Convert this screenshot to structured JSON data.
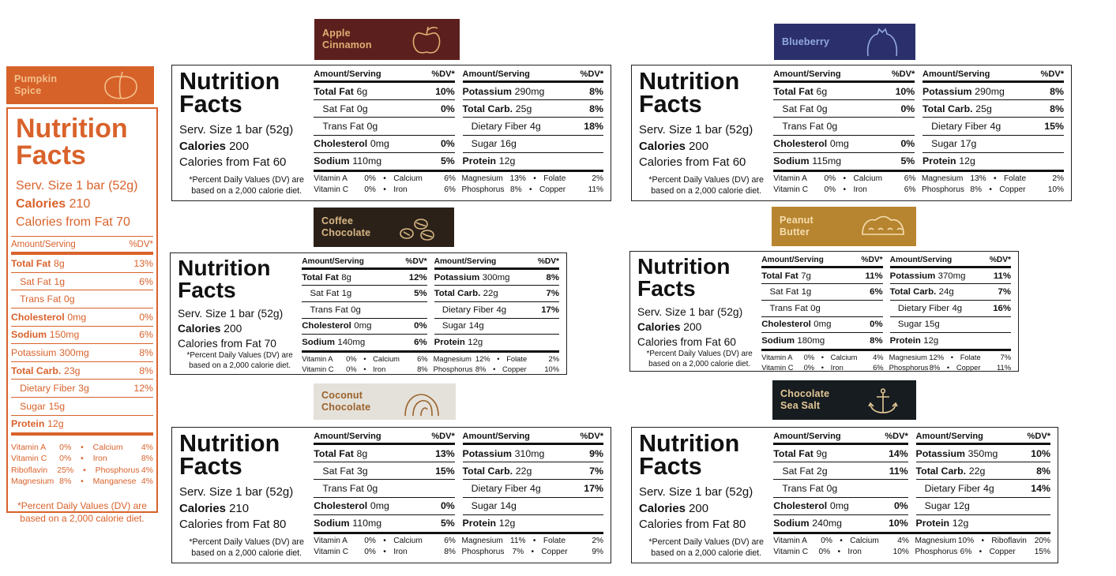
{
  "labels": [
    {
      "flavor": "Pumpkin Spice",
      "title": "Nutrition Facts",
      "serving": "Serv. Size 1 bar (52g)",
      "calories": {
        "name": "Calories",
        "amount": "210"
      },
      "calories_from_fat": "Calories from Fat 70",
      "header": [
        "Amount/Serving",
        "%DV*"
      ],
      "rows": [
        {
          "name": "Total Fat",
          "amount": "8g",
          "dv": "13%",
          "bold": true
        },
        {
          "name": "Sat Fat",
          "amount": "1g",
          "dv": "6%",
          "indent": true
        },
        {
          "name": "Trans Fat",
          "amount": "0g",
          "indent": true
        },
        {
          "name": "Cholesterol",
          "amount": "0mg",
          "dv": "0%",
          "bold": true
        },
        {
          "name": "Sodium",
          "amount": "150mg",
          "dv": "6%",
          "bold": true
        },
        {
          "name": "Potassium",
          "amount": "300mg",
          "dv": "8%"
        },
        {
          "name": "Total Carb.",
          "amount": "23g",
          "dv": "8%",
          "bold": true
        },
        {
          "name": "Dietary Fiber",
          "amount": "3g",
          "dv": "12%",
          "indent": true
        },
        {
          "name": "Sugar",
          "amount": "15g",
          "indent": true
        },
        {
          "name": "Protein",
          "amount": "12g",
          "bold": true
        }
      ],
      "vitamins": [
        [
          {
            "name": "Vitamin A",
            "dv": "0%"
          },
          {
            "name": "Calcium",
            "dv": "4%"
          }
        ],
        [
          {
            "name": "Vitamin C",
            "dv": "0%"
          },
          {
            "name": "Iron",
            "dv": "8%"
          }
        ],
        [
          {
            "name": "Riboflavin",
            "dv": "25%"
          },
          {
            "name": "Phosphorus",
            "dv": "4%"
          }
        ],
        [
          {
            "name": "Magnesium",
            "dv": "8%"
          },
          {
            "name": "Manganese",
            "dv": "4%"
          }
        ]
      ],
      "footnote": "*Percent Daily Values (DV) are based on a 2,000 calorie diet."
    },
    {
      "flavor": "Apple Cinnamon",
      "title": "Nutrition Facts",
      "serving": "Serv. Size 1 bar (52g)",
      "calories": {
        "name": "Calories",
        "amount": "200"
      },
      "calories_from_fat": "Calories from Fat 60",
      "header": [
        "Amount/Serving",
        "%DV*",
        "Amount/Serving",
        "%DV*"
      ],
      "left": [
        {
          "name": "Total Fat",
          "amount": "6g",
          "dv": "10%",
          "bold": true
        },
        {
          "name": "Sat Fat",
          "amount": "0g",
          "dv": "0%",
          "indent": true
        },
        {
          "name": "Trans Fat",
          "amount": "0g",
          "indent": true
        },
        {
          "name": "Cholesterol",
          "amount": "0mg",
          "dv": "0%",
          "bold": true
        },
        {
          "name": "Sodium",
          "amount": "110mg",
          "dv": "5%",
          "bold": true
        }
      ],
      "right": [
        {
          "name": "Potassium",
          "amount": "290mg",
          "dv": "8%",
          "bold": true
        },
        {
          "name": "Total Carb.",
          "amount": "25g",
          "dv": "8%",
          "bold": true
        },
        {
          "name": "Dietary Fiber",
          "amount": "4g",
          "dv": "18%",
          "indent": true
        },
        {
          "name": "Sugar",
          "amount": "16g",
          "indent": true
        },
        {
          "name": "Protein",
          "amount": "12g",
          "bold": true
        }
      ],
      "vitamins": [
        [
          {
            "name": "Vitamin A",
            "dv": "0%"
          },
          {
            "name": "Calcium",
            "dv": "6%"
          },
          {
            "name": "Magnesium",
            "dv": "13%"
          },
          {
            "name": "Folate",
            "dv": "2%"
          }
        ],
        [
          {
            "name": "Vitamin C",
            "dv": "0%"
          },
          {
            "name": "Iron",
            "dv": "6%"
          },
          {
            "name": "Phosphorus",
            "dv": "8%"
          },
          {
            "name": "Copper",
            "dv": "11%"
          }
        ]
      ],
      "footnote": "*Percent Daily Values (DV) are based on a 2,000 calorie diet."
    },
    {
      "flavor": "Blueberry",
      "title": "Nutrition Facts",
      "serving": "Serv. Size 1 bar (52g)",
      "calories": {
        "name": "Calories",
        "amount": "200"
      },
      "calories_from_fat": "Calories from Fat 60",
      "header": [
        "Amount/Serving",
        "%DV*",
        "Amount/Serving",
        "%DV*"
      ],
      "left": [
        {
          "name": "Total Fat",
          "amount": "6g",
          "dv": "10%",
          "bold": true
        },
        {
          "name": "Sat Fat",
          "amount": "0g",
          "dv": "0%",
          "indent": true
        },
        {
          "name": "Trans Fat",
          "amount": "0g",
          "indent": true
        },
        {
          "name": "Cholesterol",
          "amount": "0mg",
          "dv": "0%",
          "bold": true
        },
        {
          "name": "Sodium",
          "amount": "115mg",
          "dv": "5%",
          "bold": true
        }
      ],
      "right": [
        {
          "name": "Potassium",
          "amount": "290mg",
          "dv": "8%",
          "bold": true
        },
        {
          "name": "Total Carb.",
          "amount": "25g",
          "dv": "8%",
          "bold": true
        },
        {
          "name": "Dietary Fiber",
          "amount": "4g",
          "dv": "15%",
          "indent": true
        },
        {
          "name": "Sugar",
          "amount": "17g",
          "indent": true
        },
        {
          "name": "Protein",
          "amount": "12g",
          "bold": true
        }
      ],
      "vitamins": [
        [
          {
            "name": "Vitamin A",
            "dv": "0%"
          },
          {
            "name": "Calcium",
            "dv": "6%"
          },
          {
            "name": "Magnesium",
            "dv": "13%"
          },
          {
            "name": "Folate",
            "dv": "2%"
          }
        ],
        [
          {
            "name": "Vitamin C",
            "dv": "0%"
          },
          {
            "name": "Iron",
            "dv": "6%"
          },
          {
            "name": "Phosphorus",
            "dv": "8%"
          },
          {
            "name": "Copper",
            "dv": "10%"
          }
        ]
      ],
      "footnote": "*Percent Daily Values (DV) are based on a 2,000 calorie diet."
    },
    {
      "flavor": "Coffee Chocolate",
      "title": "Nutrition Facts",
      "serving": "Serv. Size 1 bar (52g)",
      "calories": {
        "name": "Calories",
        "amount": "200"
      },
      "calories_from_fat": "Calories from Fat 70",
      "header": [
        "Amount/Serving",
        "%DV*",
        "Amount/Serving",
        "%DV*"
      ],
      "left": [
        {
          "name": "Total Fat",
          "amount": "8g",
          "dv": "12%",
          "bold": true
        },
        {
          "name": "Sat Fat",
          "amount": "1g",
          "dv": "5%",
          "indent": true
        },
        {
          "name": "Trans Fat",
          "amount": "0g",
          "indent": true
        },
        {
          "name": "Cholesterol",
          "amount": "0mg",
          "dv": "0%",
          "bold": true
        },
        {
          "name": "Sodium",
          "amount": "140mg",
          "dv": "6%",
          "bold": true
        }
      ],
      "right": [
        {
          "name": "Potassium",
          "amount": "300mg",
          "dv": "8%",
          "bold": true
        },
        {
          "name": "Total Carb.",
          "amount": "22g",
          "dv": "7%",
          "bold": true
        },
        {
          "name": "Dietary Fiber",
          "amount": "4g",
          "dv": "17%",
          "indent": true
        },
        {
          "name": "Sugar",
          "amount": "14g",
          "indent": true
        },
        {
          "name": "Protein",
          "amount": "12g",
          "bold": true
        }
      ],
      "vitamins": [
        [
          {
            "name": "Vitamin A",
            "dv": "0%"
          },
          {
            "name": "Calcium",
            "dv": "6%"
          },
          {
            "name": "Magnesium",
            "dv": "12%"
          },
          {
            "name": "Folate",
            "dv": "2%"
          }
        ],
        [
          {
            "name": "Vitamin C",
            "dv": "0%"
          },
          {
            "name": "Iron",
            "dv": "8%"
          },
          {
            "name": "Phosphorus",
            "dv": "8%"
          },
          {
            "name": "Copper",
            "dv": "10%"
          }
        ]
      ],
      "footnote": "*Percent Daily Values (DV) are based on a 2,000 calorie diet."
    },
    {
      "flavor": "Peanut Butter",
      "title": "Nutrition Facts",
      "serving": "Serv. Size 1 bar (52g)",
      "calories": {
        "name": "Calories",
        "amount": "200"
      },
      "calories_from_fat": "Calories from Fat 60",
      "header": [
        "Amount/Serving",
        "%DV*",
        "Amount/Serving",
        "%DV*"
      ],
      "left": [
        {
          "name": "Total Fat",
          "amount": "7g",
          "dv": "11%",
          "bold": true
        },
        {
          "name": "Sat Fat",
          "amount": "1g",
          "dv": "6%",
          "indent": true
        },
        {
          "name": "Trans Fat",
          "amount": "0g",
          "indent": true
        },
        {
          "name": "Cholesterol",
          "amount": "0mg",
          "dv": "0%",
          "bold": true
        },
        {
          "name": "Sodium",
          "amount": "180mg",
          "dv": "8%",
          "bold": true
        }
      ],
      "right": [
        {
          "name": "Potassium",
          "amount": "370mg",
          "dv": "11%",
          "bold": true
        },
        {
          "name": "Total Carb.",
          "amount": "24g",
          "dv": "7%",
          "bold": true
        },
        {
          "name": "Dietary Fiber",
          "amount": "4g",
          "dv": "16%",
          "indent": true
        },
        {
          "name": "Sugar",
          "amount": "15g",
          "indent": true
        },
        {
          "name": "Protein",
          "amount": "12g",
          "bold": true
        }
      ],
      "vitamins": [
        [
          {
            "name": "Vitamin A",
            "dv": "0%"
          },
          {
            "name": "Calcium",
            "dv": "4%"
          },
          {
            "name": "Magnesium",
            "dv": "12%"
          },
          {
            "name": "Folate",
            "dv": "7%"
          }
        ],
        [
          {
            "name": "Vitamin C",
            "dv": "0%"
          },
          {
            "name": "Iron",
            "dv": "6%"
          },
          {
            "name": "Phosphorus",
            "dv": "8%"
          },
          {
            "name": "Copper",
            "dv": "11%"
          }
        ]
      ],
      "footnote": "*Percent Daily Values (DV) are based on a 2,000 calorie diet."
    },
    {
      "flavor": "Coconut Chocolate",
      "title": "Nutrition Facts",
      "serving": "Serv. Size 1 bar (52g)",
      "calories": {
        "name": "Calories",
        "amount": "210"
      },
      "calories_from_fat": "Calories from Fat 80",
      "header": [
        "Amount/Serving",
        "%DV*",
        "Amount/Serving",
        "%DV*"
      ],
      "left": [
        {
          "name": "Total Fat",
          "amount": "8g",
          "dv": "13%",
          "bold": true
        },
        {
          "name": "Sat Fat",
          "amount": "3g",
          "dv": "15%",
          "indent": true
        },
        {
          "name": "Trans Fat",
          "amount": "0g",
          "indent": true
        },
        {
          "name": "Cholesterol",
          "amount": "0mg",
          "dv": "0%",
          "bold": true
        },
        {
          "name": "Sodium",
          "amount": "110mg",
          "dv": "5%",
          "bold": true
        }
      ],
      "right": [
        {
          "name": "Potassium",
          "amount": "310mg",
          "dv": "9%",
          "bold": true
        },
        {
          "name": "Total Carb.",
          "amount": "22g",
          "dv": "7%",
          "bold": true
        },
        {
          "name": "Dietary Fiber",
          "amount": "4g",
          "dv": "17%",
          "indent": true
        },
        {
          "name": "Sugar",
          "amount": "14g",
          "indent": true
        },
        {
          "name": "Protein",
          "amount": "12g",
          "bold": true
        }
      ],
      "vitamins": [
        [
          {
            "name": "Vitamin A",
            "dv": "0%"
          },
          {
            "name": "Calcium",
            "dv": "6%"
          },
          {
            "name": "Magnesium",
            "dv": "11%"
          },
          {
            "name": "Folate",
            "dv": "2%"
          }
        ],
        [
          {
            "name": "Vitamin C",
            "dv": "0%"
          },
          {
            "name": "Iron",
            "dv": "8%"
          },
          {
            "name": "Phosphorus",
            "dv": "7%"
          },
          {
            "name": "Copper",
            "dv": "9%"
          }
        ]
      ],
      "footnote": "*Percent Daily Values (DV) are based on a 2,000 calorie diet."
    },
    {
      "flavor": "Chocolate Sea Salt",
      "title": "Nutrition Facts",
      "serving": "Serv. Size 1 bar (52g)",
      "calories": {
        "name": "Calories",
        "amount": "200"
      },
      "calories_from_fat": "Calories from Fat 80",
      "header": [
        "Amount/Serving",
        "%DV*",
        "Amount/Serving",
        "%DV*"
      ],
      "left": [
        {
          "name": "Total Fat",
          "amount": "9g",
          "dv": "14%",
          "bold": true
        },
        {
          "name": "Sat Fat",
          "amount": "2g",
          "dv": "11%",
          "indent": true
        },
        {
          "name": "Trans Fat",
          "amount": "0g",
          "indent": true
        },
        {
          "name": "Cholesterol",
          "amount": "0mg",
          "dv": "0%",
          "bold": true
        },
        {
          "name": "Sodium",
          "amount": "240mg",
          "dv": "10%",
          "bold": true
        }
      ],
      "right": [
        {
          "name": "Potassium",
          "amount": "350mg",
          "dv": "10%",
          "bold": true
        },
        {
          "name": "Total Carb.",
          "amount": "22g",
          "dv": "8%",
          "bold": true
        },
        {
          "name": "Dietary Fiber",
          "amount": "4g",
          "dv": "14%",
          "indent": true
        },
        {
          "name": "Sugar",
          "amount": "12g",
          "indent": true
        },
        {
          "name": "Protein",
          "amount": "12g",
          "bold": true
        }
      ],
      "vitamins": [
        [
          {
            "name": "Vitamin A",
            "dv": "0%"
          },
          {
            "name": "Calcium",
            "dv": "4%"
          },
          {
            "name": "Magnesium",
            "dv": "10%"
          },
          {
            "name": "Riboflavin",
            "dv": "20%"
          }
        ],
        [
          {
            "name": "Vitamin C",
            "dv": "0%"
          },
          {
            "name": "Iron",
            "dv": "10%"
          },
          {
            "name": "Phosphorus",
            "dv": "6%"
          },
          {
            "name": "Copper",
            "dv": "15%"
          }
        ]
      ],
      "footnote": "*Percent Daily Values (DV) are based on a 2,000 calorie diet."
    }
  ]
}
